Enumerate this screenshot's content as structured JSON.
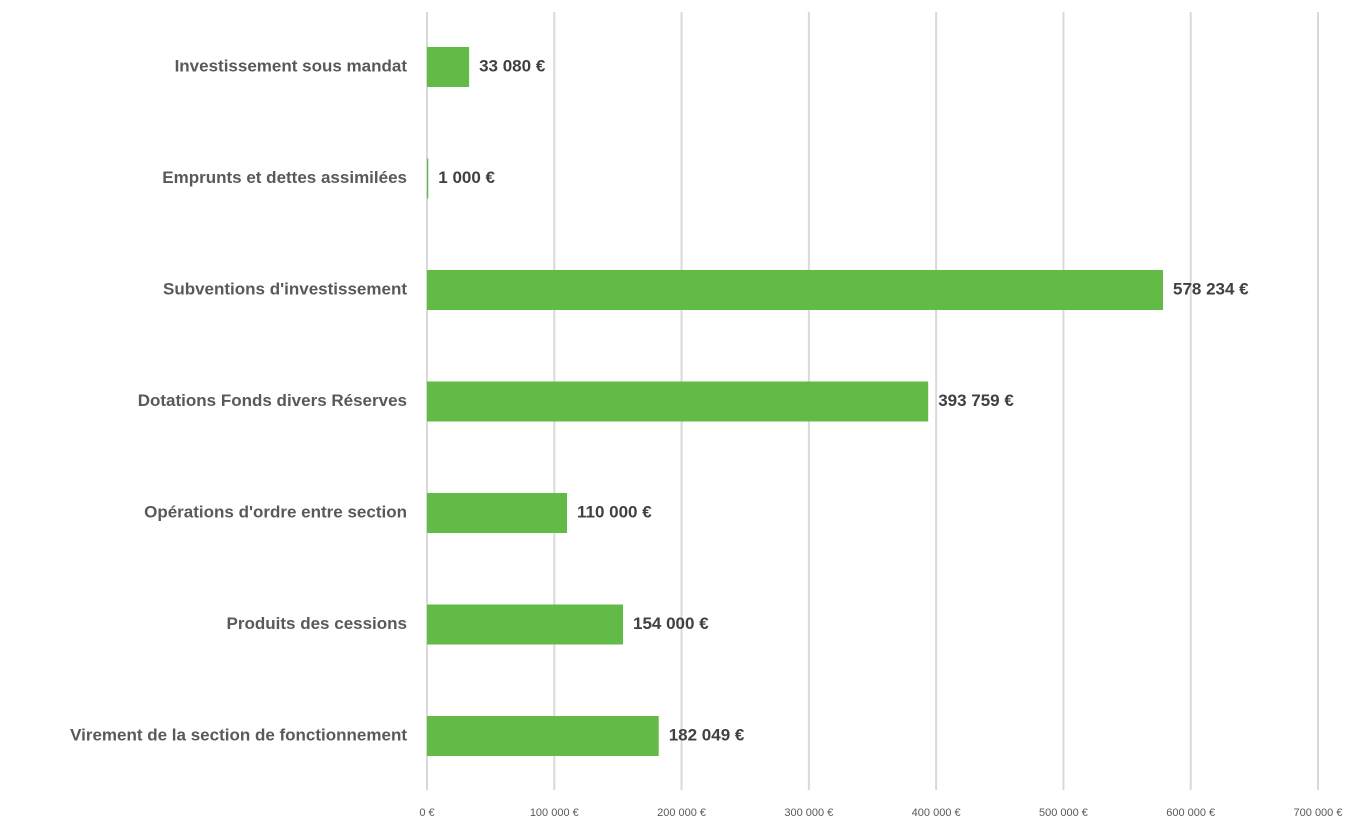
{
  "chart_data": {
    "type": "bar",
    "orientation": "horizontal",
    "categories": [
      "Investissement sous mandat",
      "Emprunts et dettes assimilées",
      "Subventions d'investissement",
      "Dotations Fonds divers Réserves",
      "Opérations d'ordre entre section",
      "Produits des cessions",
      "Virement de la section de fonctionnement"
    ],
    "values": [
      33080,
      1000,
      578234,
      393759,
      110000,
      154000,
      182049
    ],
    "value_labels": [
      "33 080 €",
      "1 000 €",
      "578 234 €",
      "393 759 €",
      "110 000 €",
      "154 000 €",
      "182 049 €"
    ],
    "color": "#62bb46",
    "xlim": [
      0,
      700000
    ],
    "xticks": [
      {
        "value": 0,
        "label": "0 €"
      },
      {
        "value": 100000,
        "label": "100 000 €"
      },
      {
        "value": 200000,
        "label": "200 000 €"
      },
      {
        "value": 300000,
        "label": "300 000 €"
      },
      {
        "value": 400000,
        "label": "400 000 €"
      },
      {
        "value": 500000,
        "label": "500 000 €"
      },
      {
        "value": 600000,
        "label": "600 000 €"
      },
      {
        "value": 700000,
        "label": "700 000 €"
      }
    ],
    "grid": true
  }
}
